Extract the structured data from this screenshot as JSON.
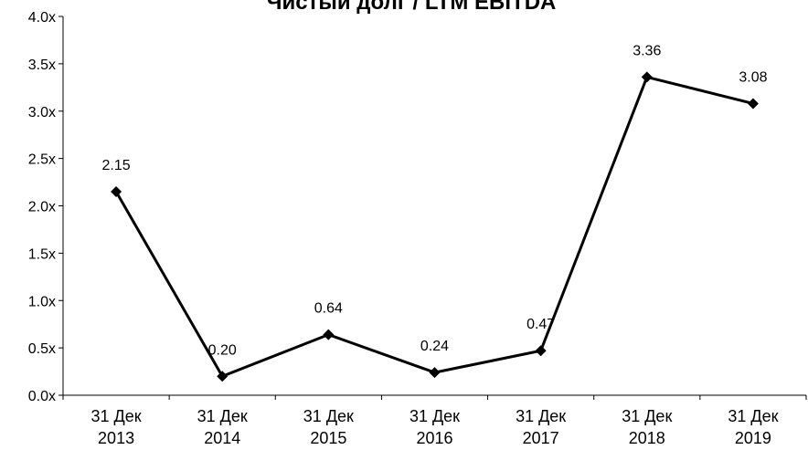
{
  "chart_data": {
    "type": "line",
    "title": "Чистый долг / LTM EBITDA",
    "xlabel": "",
    "ylabel": "",
    "categories": [
      "31 Дек 2013",
      "31 Дек 2014",
      "31 Дек 2015",
      "31 Дек 2016",
      "31 Дек 2017",
      "31 Дек 2018",
      "31 Дек 2019"
    ],
    "category_lines": [
      [
        "31 Дек",
        "2013"
      ],
      [
        "31 Дек",
        "2014"
      ],
      [
        "31 Дек",
        "2015"
      ],
      [
        "31 Дек",
        "2016"
      ],
      [
        "31 Дек",
        "2017"
      ],
      [
        "31 Дек",
        "2018"
      ],
      [
        "31 Дек",
        "2019"
      ]
    ],
    "series": [
      {
        "values": [
          2.15,
          0.2,
          0.64,
          0.24,
          0.47,
          3.36,
          3.08
        ],
        "data_labels": [
          "2.15",
          "0.20",
          "0.64",
          "0.24",
          "0.47",
          "3.36",
          "3.08"
        ],
        "color": "#000000",
        "marker": "diamond"
      }
    ],
    "ylim": [
      0,
      4.0
    ],
    "yticks": [
      0,
      0.5,
      1.0,
      1.5,
      2.0,
      2.5,
      3.0,
      3.5,
      4.0
    ],
    "ytick_labels": [
      "0.0x",
      "0.5x",
      "1.0x",
      "1.5x",
      "2.0x",
      "2.5x",
      "3.0x",
      "3.5x",
      "4.0x"
    ],
    "grid": false,
    "legend": "none"
  }
}
